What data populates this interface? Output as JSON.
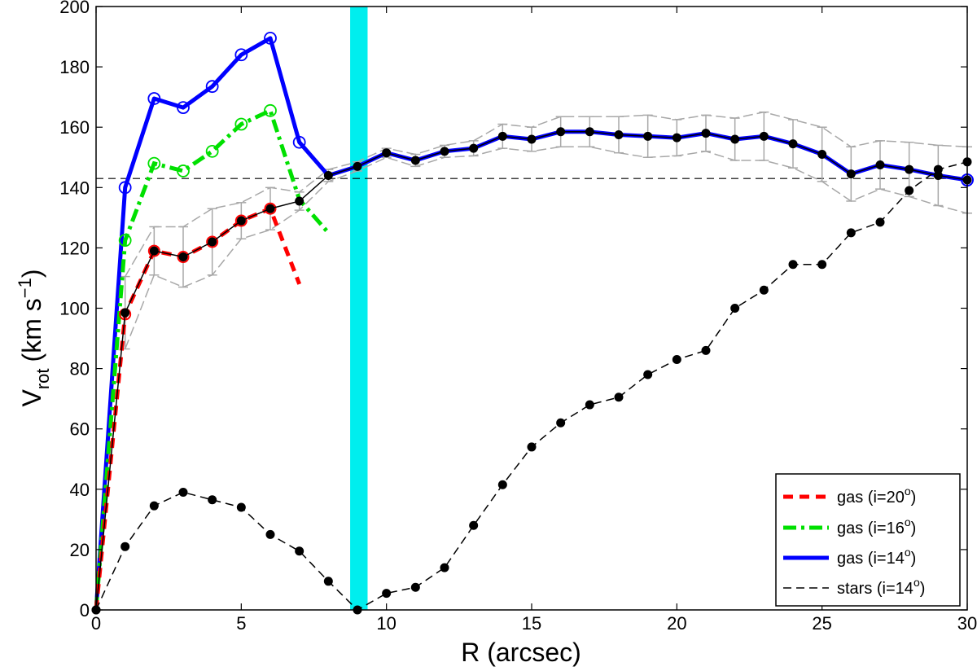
{
  "chart_data": {
    "type": "line",
    "xlabel": "R (arcsec)",
    "ylabel_main": "V",
    "ylabel_sub": "rot",
    "ylabel_unit_pre": "(km s",
    "ylabel_unit_exp": "−1",
    "ylabel_unit_post": ")",
    "xlim": [
      0,
      30
    ],
    "ylim": [
      0,
      200
    ],
    "xticks": [
      0,
      5,
      10,
      15,
      20,
      25,
      30
    ],
    "yticks": [
      0,
      20,
      40,
      60,
      80,
      100,
      120,
      140,
      160,
      180,
      200
    ],
    "highlight_band": {
      "x0": 8.75,
      "x1": 9.35,
      "color": "#00eeee"
    },
    "reference_line": {
      "y": 143
    },
    "series": [
      {
        "name": "gas (i=20°)",
        "legend_pre": "gas (i=20",
        "legend_sup": "o",
        "legend_post": ")",
        "color": "#ff0000",
        "x": [
          0,
          1,
          2,
          3,
          4,
          5,
          6,
          7
        ],
        "y": [
          0,
          98,
          119,
          117,
          122,
          129,
          133,
          108
        ]
      },
      {
        "name": "gas (i=16°)",
        "legend_pre": "gas (i=16",
        "legend_sup": "o",
        "legend_post": ")",
        "color": "#00e000",
        "x": [
          0,
          1,
          2,
          3,
          4,
          5,
          6,
          7,
          8
        ],
        "y": [
          0,
          122.5,
          148,
          145.5,
          152,
          161,
          165.5,
          136,
          125
        ]
      },
      {
        "name": "gas (i=14°)",
        "legend_pre": "gas (i=14",
        "legend_sup": "o",
        "legend_post": ")",
        "color": "#0000ff",
        "x": [
          0,
          1,
          2,
          3,
          4,
          5,
          6,
          7,
          8,
          9,
          10,
          11,
          12,
          13,
          14,
          15,
          16,
          17,
          18,
          19,
          20,
          21,
          22,
          23,
          24,
          25,
          26,
          27,
          28,
          29,
          30
        ],
        "y": [
          0,
          140,
          169.5,
          166.5,
          173.5,
          184,
          189.5,
          155,
          144,
          147,
          151.5,
          149,
          152,
          153,
          157,
          156,
          158.5,
          158.5,
          157.5,
          157,
          156.5,
          158,
          156,
          157,
          154.5,
          151,
          144.5,
          147.5,
          146,
          144,
          142.5
        ]
      },
      {
        "name": "stars (i=14°)",
        "legend_pre": "stars (i=14",
        "legend_sup": "o",
        "legend_post": ")",
        "color": "#000000",
        "x": [
          0,
          1,
          2,
          3,
          4,
          5,
          6,
          7,
          8,
          9,
          10,
          11,
          12,
          13,
          14,
          15,
          16,
          17,
          18,
          19,
          20,
          21,
          22,
          23,
          24,
          25,
          26,
          27,
          28,
          29,
          30
        ],
        "y": [
          0,
          21,
          34.5,
          39,
          36.5,
          34,
          25,
          19.5,
          9.5,
          0,
          5.5,
          7.5,
          14,
          28,
          41.5,
          54,
          62,
          68,
          70.5,
          78,
          83,
          86,
          100,
          106,
          114.5,
          114.5,
          125,
          128.5,
          139,
          146,
          148.5
        ]
      }
    ],
    "black_rc": {
      "x": [
        0,
        1,
        2,
        3,
        4,
        5,
        6,
        7,
        8,
        9,
        10,
        11,
        12,
        13,
        14,
        15,
        16,
        17,
        18,
        19,
        20,
        21,
        22,
        23,
        24,
        25,
        26,
        27,
        28,
        29,
        30
      ],
      "y": [
        0,
        98.5,
        119,
        117,
        122,
        129,
        133,
        135.5,
        144,
        147,
        151.5,
        149,
        152,
        153,
        157,
        156,
        158.5,
        158.5,
        157.5,
        157,
        156.5,
        158,
        156,
        157,
        154.5,
        151,
        144.5,
        147.5,
        146,
        144,
        142.5
      ],
      "err": [
        0,
        12,
        8,
        10,
        11,
        6,
        7,
        3,
        2,
        1.5,
        1.5,
        2,
        2,
        2.5,
        4,
        4,
        5,
        5,
        6,
        7,
        6,
        6,
        7,
        8,
        8,
        9,
        9,
        8,
        9,
        10,
        11
      ]
    }
  }
}
